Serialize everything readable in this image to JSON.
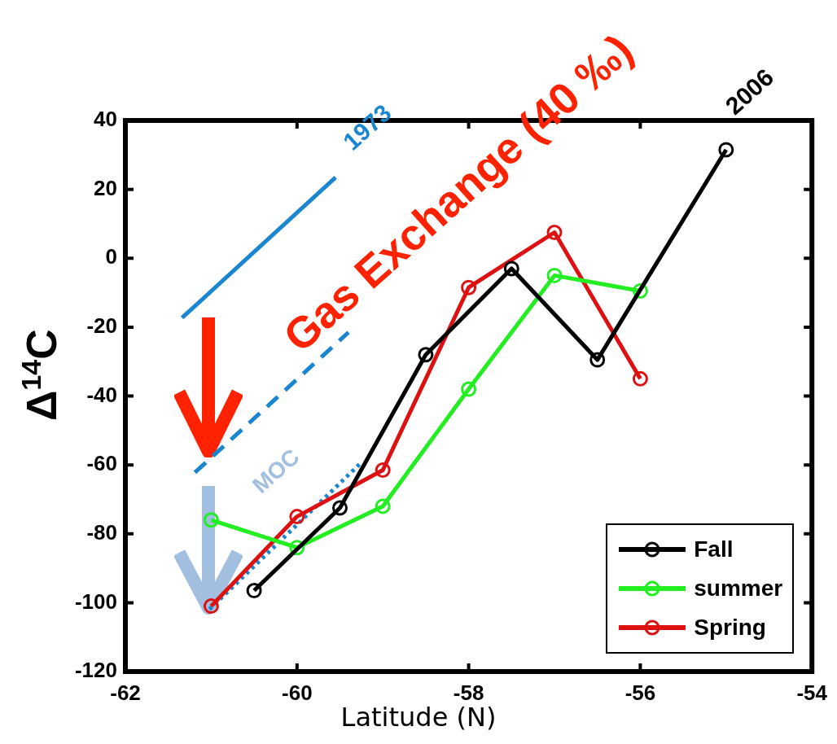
{
  "chart_data": {
    "type": "line",
    "xlabel": "Latitude (N)",
    "ylabel": "Δ$^{14}$C",
    "xlim": [
      -62,
      -54
    ],
    "xticks": [
      -62,
      -60,
      -58,
      -56,
      -54
    ],
    "ylim": [
      -120,
      40
    ],
    "yticks": [
      -120,
      -100,
      -80,
      -60,
      -40,
      -20,
      0,
      20,
      40
    ],
    "grid": false,
    "legend": "bottom right",
    "marker": "circle",
    "line_style": "solid",
    "series": [
      {
        "name": "Fall",
        "color": "#000000",
        "x": [
          -60.5,
          -59.5,
          -58.5,
          -57.5,
          -56.5,
          -55
        ],
        "values": [
          -96.5,
          -72.5,
          -28,
          -3,
          -29.5,
          31.5
        ]
      },
      {
        "name": "summer",
        "color": "#22ee22",
        "x": [
          -61,
          -60,
          -59,
          -58,
          -57,
          -56
        ],
        "values": [
          -76,
          -84,
          -72,
          -38,
          -5,
          -9.5
        ]
      },
      {
        "name": "Spring",
        "color": "#dd1111",
        "x": [
          -61,
          -60,
          -59,
          -58,
          -57,
          -56
        ],
        "values": [
          -101,
          -75,
          -61.5,
          -8.5,
          7.5,
          -35
        ]
      },
      {
        "type": "line",
        "color": "#1a85d0",
        "marker": "none",
        "line_style": "solid",
        "x": [
          -61.34,
          -59.55
        ],
        "values": [
          -17.3,
          23.5
        ]
      },
      {
        "type": "line",
        "color": "#1a85d0",
        "marker": "none",
        "line_style": "dashed",
        "x": [
          -61.19,
          -59.4
        ],
        "values": [
          -62.2,
          -21.5
        ]
      },
      {
        "type": "line",
        "color": "#1a85d0",
        "marker": "none",
        "line_style": "dotted",
        "x": [
          -61.02,
          -59.25
        ],
        "values": [
          -101.9,
          -59.3
        ]
      }
    ],
    "annotations": [
      {
        "text": "1973",
        "x": -59.55,
        "y": 23.5
      },
      {
        "text": "2006",
        "x": -55,
        "y": 31.5
      },
      "Gas Exchange (40 ‰)",
      "MOC"
    ]
  }
}
